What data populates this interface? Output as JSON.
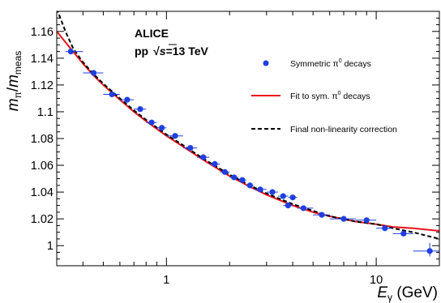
{
  "chart_data": {
    "type": "scatter",
    "x_scale": "log",
    "xlim": [
      0.3,
      20
    ],
    "ylim": [
      0.985,
      1.175
    ],
    "xlabel": {
      "main": "E",
      "sub": "γ",
      "unit": " (GeV)"
    },
    "ylabel": {
      "numerator": "m",
      "numerator_sub": "π",
      "slash": "/",
      "denominator": "m",
      "denominator_sub": "meas"
    },
    "x_ticks": [
      {
        "value": 1,
        "label": "1"
      },
      {
        "value": 10,
        "label": "10"
      }
    ],
    "y_ticks": [
      {
        "value": 1.0,
        "label": "1"
      },
      {
        "value": 1.02,
        "label": "1.02"
      },
      {
        "value": 1.04,
        "label": "1.04"
      },
      {
        "value": 1.06,
        "label": "1.06"
      },
      {
        "value": 1.08,
        "label": "1.08"
      },
      {
        "value": 1.1,
        "label": "1.1"
      },
      {
        "value": 1.12,
        "label": "1.12"
      },
      {
        "value": 1.14,
        "label": "1.14"
      },
      {
        "value": 1.16,
        "label": "1.16"
      }
    ],
    "annotations": {
      "experiment": "ALICE",
      "collision_prefix": "pp",
      "sqrt_symbol": "√",
      "s_symbol": "s",
      "energy": "=13 TeV"
    },
    "legend": {
      "placement": "top-right",
      "entries": [
        {
          "label_main": "Symmetric π",
          "label_sup": "0",
          "label_tail": " decays",
          "marker": "dot",
          "color": "#1f3fe0"
        },
        {
          "label_main": "Fit to sym. π",
          "label_sup": "0",
          "label_tail": " decays",
          "marker": "solid-line",
          "color": "#e8141c"
        },
        {
          "label_main": "Final non-linearity correction",
          "label_sup": "",
          "label_tail": "",
          "marker": "dashed-line",
          "color": "#000000"
        }
      ]
    },
    "series": [
      {
        "name": "Symmetric π0 decays",
        "color": "#1f3fe0",
        "points": [
          {
            "x": 0.35,
            "y": 1.145,
            "xlo": 0.33,
            "xhi": 0.4
          },
          {
            "x": 0.45,
            "y": 1.129,
            "xlo": 0.4,
            "xhi": 0.5
          },
          {
            "x": 0.55,
            "y": 1.113,
            "xlo": 0.5,
            "xhi": 0.6
          },
          {
            "x": 0.65,
            "y": 1.109,
            "xlo": 0.6,
            "xhi": 0.7
          },
          {
            "x": 0.75,
            "y": 1.102,
            "xlo": 0.7,
            "xhi": 0.8
          },
          {
            "x": 0.85,
            "y": 1.092,
            "xlo": 0.8,
            "xhi": 0.9
          },
          {
            "x": 0.95,
            "y": 1.088,
            "xlo": 0.9,
            "xhi": 1.0
          },
          {
            "x": 1.1,
            "y": 1.082,
            "xlo": 1.0,
            "xhi": 1.2
          },
          {
            "x": 1.3,
            "y": 1.073,
            "xlo": 1.2,
            "xhi": 1.4
          },
          {
            "x": 1.5,
            "y": 1.066,
            "xlo": 1.4,
            "xhi": 1.6
          },
          {
            "x": 1.7,
            "y": 1.061,
            "xlo": 1.6,
            "xhi": 1.8
          },
          {
            "x": 1.9,
            "y": 1.055,
            "xlo": 1.8,
            "xhi": 2.0
          },
          {
            "x": 2.1,
            "y": 1.051,
            "xlo": 2.0,
            "xhi": 2.2
          },
          {
            "x": 2.3,
            "y": 1.049,
            "xlo": 2.2,
            "xhi": 2.4
          },
          {
            "x": 2.5,
            "y": 1.045,
            "xlo": 2.4,
            "xhi": 2.6
          },
          {
            "x": 2.8,
            "y": 1.042,
            "xlo": 2.6,
            "xhi": 3.0
          },
          {
            "x": 3.2,
            "y": 1.04,
            "xlo": 3.0,
            "xhi": 3.4
          },
          {
            "x": 3.6,
            "y": 1.037,
            "xlo": 3.4,
            "xhi": 3.8
          },
          {
            "x": 4.0,
            "y": 1.036,
            "xlo": 3.8,
            "xhi": 4.2
          },
          {
            "x": 3.8,
            "y": 1.03,
            "xlo": 3.6,
            "xhi": 4.0
          },
          {
            "x": 4.5,
            "y": 1.028,
            "xlo": 4.2,
            "xhi": 5.0
          },
          {
            "x": 5.5,
            "y": 1.023,
            "xlo": 5.0,
            "xhi": 6.0
          },
          {
            "x": 7.0,
            "y": 1.02,
            "xlo": 6.0,
            "xhi": 8.0
          },
          {
            "x": 9.0,
            "y": 1.019,
            "xlo": 8.0,
            "xhi": 10.0
          },
          {
            "x": 11.0,
            "y": 1.013,
            "xlo": 10.0,
            "xhi": 12.0
          },
          {
            "x": 13.5,
            "y": 1.009,
            "xlo": 12.0,
            "xhi": 15.0
          },
          {
            "x": 18.0,
            "y": 0.996,
            "xlo": 15.0,
            "xhi": 20.0,
            "ylo": 0.992,
            "yhi": 1.002
          }
        ]
      },
      {
        "name": "Fit to sym. π0 decays",
        "color": "#e8141c",
        "line": "solid",
        "x": [
          0.3,
          0.35,
          0.4,
          0.45,
          0.5,
          0.6,
          0.7,
          0.8,
          1.0,
          1.2,
          1.5,
          2.0,
          2.5,
          3.0,
          4.0,
          5.0,
          6.0,
          8.0,
          10.0,
          12.0,
          15.0,
          20.0
        ],
        "y": [
          1.16,
          1.147,
          1.136,
          1.127,
          1.12,
          1.109,
          1.1,
          1.093,
          1.082,
          1.074,
          1.064,
          1.052,
          1.044,
          1.038,
          1.03,
          1.025,
          1.022,
          1.018,
          1.016,
          1.014,
          1.013,
          1.011
        ]
      },
      {
        "name": "Final non-linearity correction",
        "color": "#000000",
        "line": "dashed",
        "x": [
          0.3,
          0.33,
          0.36,
          0.4,
          0.45,
          0.5,
          0.6,
          0.7,
          0.8,
          1.0,
          1.2,
          1.5,
          2.0,
          2.5,
          3.0,
          4.0,
          5.0,
          6.0,
          8.0,
          10.0,
          12.0,
          15.0,
          20.0
        ],
        "y": [
          1.177,
          1.16,
          1.147,
          1.137,
          1.128,
          1.121,
          1.11,
          1.101,
          1.094,
          1.083,
          1.075,
          1.065,
          1.053,
          1.045,
          1.039,
          1.031,
          1.026,
          1.022,
          1.018,
          1.016,
          1.013,
          1.01,
          1.005
        ]
      }
    ]
  }
}
